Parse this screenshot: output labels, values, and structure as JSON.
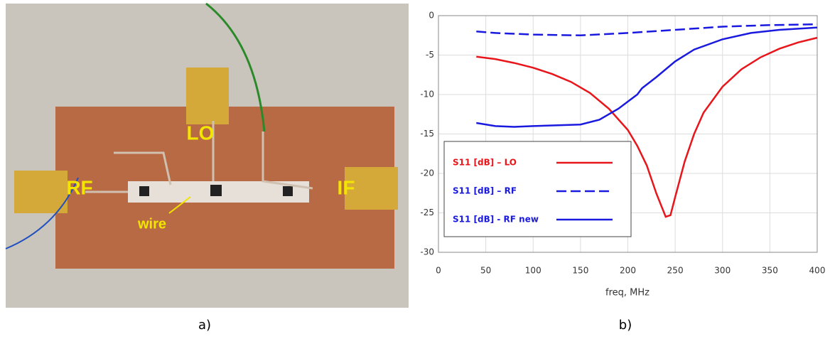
{
  "photo": {
    "labels": [
      "RF",
      "LO",
      "IF",
      "wire"
    ],
    "caption": "a)"
  },
  "caption_b": "b)",
  "chart_data": {
    "type": "line",
    "xlabel": "freq, MHz",
    "xlim": [
      0,
      400
    ],
    "xticks": [
      0,
      50,
      100,
      150,
      200,
      250,
      300,
      350,
      400
    ],
    "ylim": [
      -30,
      0
    ],
    "yticks": [
      0,
      -5,
      -10,
      -15,
      -20,
      -25,
      -30
    ],
    "grid": true,
    "series": [
      {
        "name": "S11 [dB] – LO",
        "color": "#e8151b",
        "dash": false,
        "x": [
          40,
          60,
          80,
          100,
          120,
          140,
          160,
          180,
          200,
          210,
          220,
          230,
          240,
          245,
          250,
          260,
          270,
          280,
          300,
          320,
          340,
          360,
          380,
          400
        ],
        "values": [
          -5.2,
          -5.5,
          -6.0,
          -6.6,
          -7.4,
          -8.4,
          -9.8,
          -11.8,
          -14.5,
          -16.5,
          -19,
          -22.5,
          -25.5,
          -25.3,
          -23,
          -18.5,
          -15,
          -12.3,
          -9,
          -6.8,
          -5.3,
          -4.2,
          -3.4,
          -2.8
        ]
      },
      {
        "name": "S11 [dB] – RF",
        "color": "#1a1adf",
        "dash": true,
        "x": [
          40,
          60,
          80,
          100,
          150,
          200,
          250,
          300,
          350,
          400
        ],
        "values": [
          -2.0,
          -2.2,
          -2.3,
          -2.4,
          -2.5,
          -2.2,
          -1.8,
          -1.4,
          -1.2,
          -1.1
        ]
      },
      {
        "name": "S11 [dB] - RF new",
        "color": "#1a1adf",
        "dash": false,
        "x": [
          40,
          60,
          80,
          100,
          150,
          170,
          190,
          210,
          215,
          230,
          250,
          270,
          300,
          330,
          360,
          400
        ],
        "values": [
          -13.6,
          -14.0,
          -14.1,
          -14.0,
          -13.8,
          -13.2,
          -11.8,
          -10,
          -9.2,
          -7.8,
          -5.8,
          -4.3,
          -3.0,
          -2.2,
          -1.8,
          -1.5
        ]
      }
    ]
  }
}
